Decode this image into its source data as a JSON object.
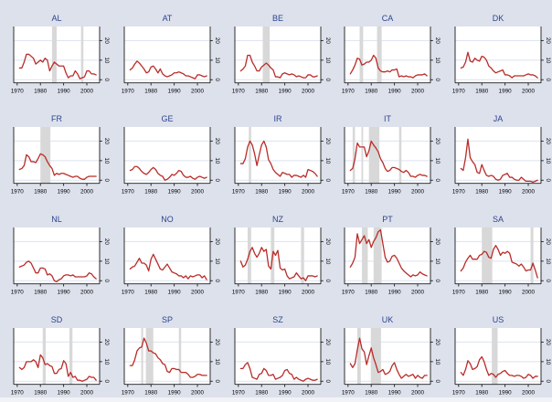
{
  "figure": {
    "background": "#dde1ec",
    "panel_background": "#ffffff",
    "grid_color": "#dce3f1",
    "band_color": "#d8d8d8",
    "line_color": "#b92c28",
    "title_color": "#2c4490",
    "axis_color": "#1a1a1a",
    "edge_strip_color": "#f2f3f7"
  },
  "chart_data": {
    "type": "line",
    "layout": {
      "rows": 4,
      "cols": 5
    },
    "grid": true,
    "legend": "none",
    "xlim": [
      1968.5,
      2005.5
    ],
    "ylim": [
      -1.6,
      27.2
    ],
    "x_tick_labels": [
      "1970",
      "1980",
      "1990",
      "2000"
    ],
    "x_tick_values": [
      1970,
      1980,
      1990,
      2000
    ],
    "y_tick_labels": [
      "0",
      "10",
      "20"
    ],
    "y_tick_values": [
      0,
      10,
      20
    ],
    "x_years": [
      1971,
      1972,
      1973,
      1974,
      1975,
      1976,
      1977,
      1978,
      1979,
      1980,
      1981,
      1982,
      1983,
      1984,
      1985,
      1986,
      1987,
      1988,
      1989,
      1990,
      1991,
      1992,
      1993,
      1994,
      1995,
      1996,
      1997,
      1998,
      1999,
      2000,
      2001,
      2002,
      2003,
      2004
    ],
    "panels": [
      {
        "title": "AL",
        "values": [
          6,
          6,
          9,
          13,
          13,
          12,
          11,
          8,
          9,
          10,
          9,
          11,
          10,
          4.5,
          7,
          9,
          8,
          7,
          7,
          7,
          3.5,
          1,
          2,
          2,
          4.5,
          3,
          0.5,
          1,
          1.5,
          4.5,
          4.5,
          3,
          3,
          2.5
        ],
        "bands": [
          [
            1985,
            1987
          ],
          [
            1997.5,
            1998.5
          ]
        ]
      },
      {
        "title": "AT",
        "values": [
          5,
          6,
          8,
          9.5,
          8.5,
          7,
          5.5,
          3.5,
          4,
          6.5,
          7,
          5.5,
          3.5,
          5.5,
          3,
          2,
          1.5,
          2,
          2.5,
          3.5,
          3.5,
          4,
          3.5,
          3,
          2,
          2,
          1.5,
          1,
          0.5,
          2.5,
          2.5,
          2,
          1.5,
          2
        ],
        "bands": []
      },
      {
        "title": "BE",
        "values": [
          4.5,
          5.5,
          7,
          12.5,
          12.5,
          9,
          7,
          4.5,
          4.5,
          6.5,
          7.5,
          8.5,
          7.5,
          6,
          5,
          1.5,
          1.5,
          1,
          3,
          3.5,
          3,
          2.5,
          3,
          2.5,
          1.5,
          2,
          1.5,
          1,
          1,
          2.5,
          2.5,
          1.5,
          1.5,
          2
        ],
        "bands": [
          [
            1980.5,
            1983.5
          ]
        ]
      },
      {
        "title": "CA",
        "values": [
          3,
          5,
          7.5,
          11,
          10.5,
          7.5,
          8,
          9,
          9,
          10,
          12.5,
          11,
          6,
          4.5,
          4,
          4,
          4.5,
          4,
          5,
          5,
          5.5,
          1.5,
          2,
          1.5,
          2,
          1.5,
          1.5,
          1,
          2,
          2.5,
          2.5,
          2.5,
          3,
          2
        ],
        "bands": [
          [
            1975,
            1976.5
          ],
          [
            1982.5,
            1984.5
          ]
        ]
      },
      {
        "title": "DK",
        "values": [
          6,
          6.5,
          9,
          14,
          9.5,
          9,
          11,
          10,
          9.5,
          12,
          11.5,
          10,
          7,
          6,
          4.5,
          3.5,
          4,
          4.5,
          5,
          2.5,
          2.5,
          2,
          1,
          2,
          2,
          2,
          2,
          2,
          2.5,
          3,
          2.5,
          2.5,
          2,
          1
        ],
        "bands": []
      },
      {
        "title": "FR",
        "values": [
          5.5,
          6,
          7.5,
          13,
          12,
          9.5,
          9.5,
          9,
          11,
          13.5,
          13,
          12,
          9.5,
          7.5,
          6,
          2.5,
          3.5,
          3,
          3.5,
          3.5,
          3,
          2.5,
          2,
          1.5,
          2,
          2,
          1,
          0.5,
          0.5,
          1.5,
          2,
          2,
          2,
          2
        ],
        "bands": [
          [
            1980,
            1984.3
          ]
        ]
      },
      {
        "title": "GE",
        "values": [
          5,
          5.5,
          7,
          7,
          6,
          4.5,
          3.5,
          3,
          4,
          5.5,
          6.5,
          5.5,
          3.5,
          2.5,
          2,
          0,
          0.5,
          1.5,
          3,
          2.5,
          3.5,
          5,
          4.5,
          2.5,
          1.5,
          1.5,
          2,
          1,
          0.5,
          1.5,
          2,
          1.5,
          1,
          1.5
        ],
        "bands": []
      },
      {
        "title": "IR",
        "values": [
          8.5,
          8.5,
          11,
          17,
          20,
          18,
          13.5,
          7.5,
          13,
          18,
          20,
          17,
          10.5,
          8.5,
          5.5,
          4,
          3,
          2,
          4,
          3.5,
          3,
          3,
          1.5,
          2.5,
          2.5,
          2,
          1.5,
          2.5,
          1.5,
          5.5,
          5,
          4.5,
          3.5,
          2
        ],
        "bands": [
          [
            1974.5,
            1975.5
          ]
        ]
      },
      {
        "title": "IT",
        "values": [
          5,
          6,
          11,
          19,
          17,
          17,
          17,
          12,
          15,
          20,
          18,
          16.5,
          14.5,
          11,
          9,
          6,
          4.5,
          5,
          6.5,
          6.5,
          6,
          5.5,
          4.5,
          4,
          5,
          4,
          2,
          2,
          1.5,
          2.5,
          3,
          2.5,
          2.5,
          2
        ],
        "bands": [
          [
            1972,
            1973
          ],
          [
            1975.8,
            1976.5
          ],
          [
            1979,
            1983.5
          ],
          [
            1992,
            1993
          ]
        ]
      },
      {
        "title": "JA",
        "values": [
          6,
          5,
          11.5,
          21,
          11.5,
          9.5,
          8,
          4,
          3.5,
          8,
          5,
          2.5,
          2,
          2.5,
          2,
          0.5,
          0,
          0.5,
          2.5,
          3,
          3.5,
          1.5,
          1.5,
          0.5,
          0,
          0,
          1.5,
          0.5,
          -0.5,
          -0.5,
          -0.5,
          -1,
          -0.5,
          0
        ],
        "bands": []
      },
      {
        "title": "NL",
        "values": [
          7,
          7.5,
          8,
          9.5,
          10,
          9,
          6.5,
          4,
          4,
          6.5,
          6.5,
          6,
          3,
          3.5,
          2.5,
          0,
          -0.5,
          0.5,
          1,
          2.5,
          3,
          3,
          2.5,
          3,
          2,
          2,
          2,
          2,
          2,
          2.5,
          4,
          3.5,
          2,
          1
        ],
        "bands": []
      },
      {
        "title": "NO",
        "values": [
          6,
          7,
          7.5,
          9.5,
          11.5,
          9,
          9,
          8,
          5,
          11,
          13.5,
          11,
          8.5,
          6,
          5.5,
          7,
          8.5,
          6.5,
          4.5,
          4,
          3.5,
          2.5,
          2.5,
          1.5,
          2.5,
          1,
          2.5,
          2,
          2.5,
          3,
          3,
          1.5,
          2.5,
          0.5
        ],
        "bands": []
      },
      {
        "title": "NZ",
        "values": [
          10,
          7,
          8,
          11,
          15,
          17,
          14,
          12,
          14,
          17,
          15,
          16,
          7.5,
          6,
          15,
          13,
          15.5,
          6.5,
          5.5,
          6,
          2.5,
          1,
          1.5,
          2,
          4,
          2.5,
          1,
          1.5,
          0,
          2.5,
          2.5,
          2.5,
          2,
          2.5
        ],
        "bands": [
          [
            1974,
            1975.5
          ],
          [
            1984,
            1985.5
          ],
          [
            1997,
            1998.3
          ]
        ]
      },
      {
        "title": "PT",
        "values": [
          7,
          9,
          12,
          24,
          19,
          21,
          23,
          19,
          21,
          17,
          20,
          22,
          25,
          26,
          19,
          12,
          9.5,
          10,
          12.5,
          13,
          11.5,
          9,
          6.5,
          5,
          4,
          3,
          2,
          3,
          2.5,
          3,
          4.5,
          3.5,
          3,
          2.5
        ],
        "bands": [
          [
            1976,
            1978.5
          ],
          [
            1981,
            1984.5
          ]
        ]
      },
      {
        "title": "SA",
        "values": [
          5,
          6.5,
          9.5,
          11.5,
          13,
          11,
          11,
          11,
          13,
          13.5,
          15,
          14.5,
          12,
          11.5,
          16,
          18,
          16,
          13,
          14.5,
          14,
          15,
          14,
          9.5,
          9,
          8.5,
          7.5,
          8.5,
          7,
          5,
          5.5,
          5.5,
          9,
          5.5,
          1.5
        ],
        "bands": [
          [
            1980,
            1984.5
          ],
          [
            2001,
            2002.2
          ]
        ]
      },
      {
        "title": "SD",
        "values": [
          7,
          6,
          7,
          10,
          10,
          10,
          11,
          10,
          7,
          13.5,
          12,
          8.5,
          9,
          8,
          7.5,
          4,
          4,
          6,
          6.5,
          10.5,
          9,
          2.5,
          4.5,
          2,
          2.5,
          0.5,
          0.5,
          0,
          0.5,
          1,
          2.5,
          2,
          2,
          0.5
        ],
        "bands": [
          [
            1981,
            1982.3
          ],
          [
            1992.5,
            1993.8
          ]
        ]
      },
      {
        "title": "SP",
        "values": [
          8,
          8,
          11,
          15.5,
          17,
          17.5,
          22,
          19.5,
          15.5,
          15.5,
          14.5,
          14,
          12,
          11,
          9,
          8.5,
          5,
          4.5,
          6.5,
          6.5,
          6,
          6,
          4.5,
          4.5,
          4.5,
          3.5,
          2,
          2,
          2.5,
          3.5,
          3.5,
          3,
          3,
          3
        ],
        "bands": [
          [
            1975.8,
            1976.6
          ],
          [
            1977.8,
            1981
          ],
          [
            1992,
            1993
          ]
        ]
      },
      {
        "title": "SZ",
        "values": [
          6.5,
          6.5,
          8.5,
          9.5,
          6.5,
          2,
          1.5,
          1,
          3.5,
          4,
          6.5,
          5.5,
          3,
          3,
          3.5,
          1,
          1.5,
          2,
          3,
          5.5,
          6,
          4,
          3.5,
          1,
          2,
          1,
          0.5,
          0,
          1,
          1.5,
          1,
          0.5,
          0.5,
          1
        ],
        "bands": []
      },
      {
        "title": "UK",
        "values": [
          9,
          7,
          9,
          16,
          22,
          16.5,
          15,
          8.5,
          13,
          17,
          12,
          8.5,
          4.5,
          5,
          6,
          3.5,
          4,
          5,
          8,
          9.5,
          6,
          3.5,
          1.5,
          2.5,
          3.5,
          2.5,
          3,
          3.5,
          1.5,
          3,
          2,
          1.5,
          3,
          3
        ],
        "bands": [
          [
            1974,
            1975.5
          ],
          [
            1979.8,
            1984.2
          ]
        ]
      },
      {
        "title": "US",
        "values": [
          4.5,
          3,
          6,
          10.5,
          9,
          6,
          6.5,
          7.5,
          11,
          12.5,
          10,
          6,
          3,
          4,
          3.5,
          2,
          3.5,
          4,
          5,
          5.5,
          4,
          3,
          3,
          2.5,
          3,
          3,
          2.5,
          1.5,
          2,
          3.5,
          3,
          1.5,
          2.5,
          2.5
        ],
        "bands": [
          [
            1984.3,
            1986.8
          ]
        ]
      }
    ]
  }
}
